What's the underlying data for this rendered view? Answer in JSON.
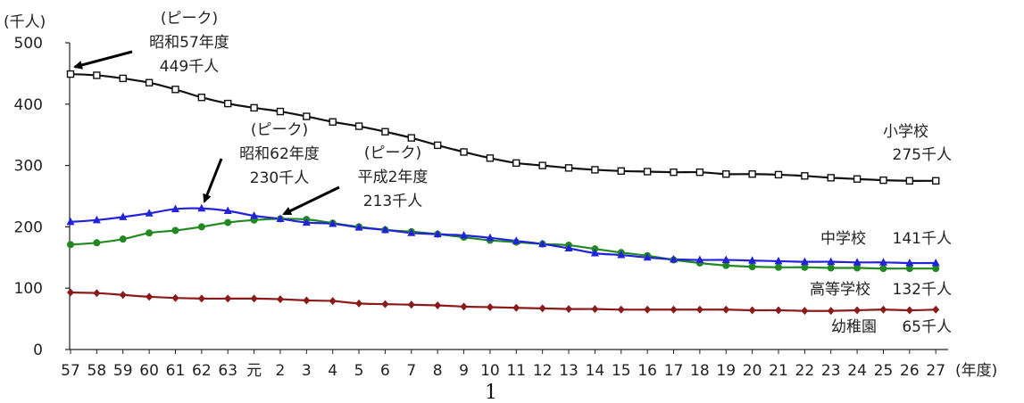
{
  "chart_data": {
    "type": "line",
    "ylabel": "(千人)",
    "xlabel": "(年度)",
    "ylim": [
      0,
      500
    ],
    "yticks": [
      0,
      100,
      200,
      300,
      400,
      500
    ],
    "categories": [
      "57",
      "58",
      "59",
      "60",
      "61",
      "62",
      "63",
      "元",
      "2",
      "3",
      "4",
      "5",
      "6",
      "7",
      "8",
      "9",
      "10",
      "11",
      "12",
      "13",
      "14",
      "15",
      "16",
      "17",
      "18",
      "19",
      "20",
      "21",
      "22",
      "23",
      "24",
      "25",
      "26",
      "27"
    ],
    "grid": false,
    "series": [
      {
        "name": "小学校",
        "end_label": "275千人",
        "color": "#111111",
        "marker": "open-square",
        "values": [
          449,
          447,
          442,
          435,
          424,
          411,
          401,
          394,
          388,
          380,
          371,
          364,
          355,
          345,
          333,
          322,
          312,
          304,
          300,
          296,
          293,
          291,
          290,
          289,
          289,
          286,
          286,
          285,
          283,
          280,
          278,
          276,
          275,
          275
        ]
      },
      {
        "name": "中学校",
        "end_label": "141千人",
        "color": "#2222dd",
        "marker": "triangle",
        "values": [
          208,
          211,
          216,
          222,
          229,
          230,
          226,
          218,
          213,
          207,
          205,
          199,
          195,
          190,
          188,
          186,
          182,
          177,
          172,
          165,
          157,
          154,
          150,
          147,
          146,
          146,
          145,
          144,
          143,
          143,
          142,
          142,
          141,
          141
        ]
      },
      {
        "name": "高等学校",
        "end_label": "132千人",
        "color": "#228822",
        "marker": "circle",
        "values": [
          171,
          174,
          180,
          190,
          194,
          200,
          207,
          211,
          213,
          212,
          206,
          200,
          195,
          192,
          188,
          183,
          178,
          175,
          172,
          170,
          164,
          158,
          153,
          146,
          141,
          137,
          135,
          134,
          134,
          133,
          133,
          132,
          132,
          132
        ]
      },
      {
        "name": "幼稚園",
        "end_label": "65千人",
        "color": "#8b1a1a",
        "marker": "diamond",
        "values": [
          93,
          92,
          89,
          86,
          84,
          83,
          83,
          83,
          82,
          80,
          79,
          75,
          74,
          73,
          72,
          70,
          69,
          68,
          67,
          66,
          66,
          65,
          65,
          65,
          65,
          65,
          64,
          64,
          63,
          63,
          64,
          65,
          64,
          65
        ]
      }
    ],
    "annotations": [
      {
        "lines": [
          "(ピーク)",
          "昭和57年度",
          "449千人"
        ],
        "series": "小学校",
        "index": 0
      },
      {
        "lines": [
          "(ピーク)",
          "昭和62年度",
          "230千人"
        ],
        "series": "中学校",
        "index": 5
      },
      {
        "lines": [
          "(ピーク)",
          "平成2年度",
          "213千人"
        ],
        "series": "高等学校",
        "index": 8
      }
    ]
  },
  "page_number": "1"
}
